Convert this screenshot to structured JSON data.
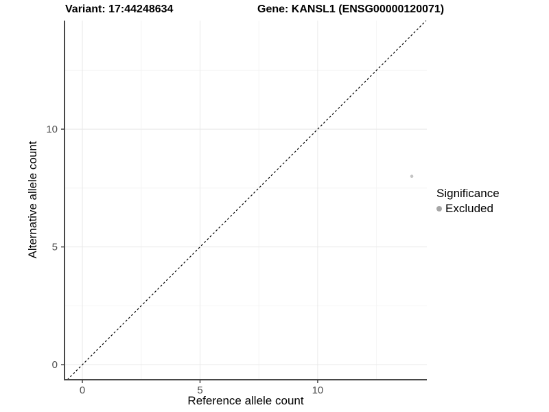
{
  "chart_data": {
    "type": "scatter",
    "title_left": "Variant: 17:44248634",
    "title_right": "Gene: KANSL1 (ENSG00000120071)",
    "xlabel": "Reference allele count",
    "ylabel": "Alternative allele count",
    "xlim": [
      -0.76,
      14.64
    ],
    "ylim": [
      -0.64,
      14.61
    ],
    "x_ticks": [
      0,
      5,
      10
    ],
    "y_ticks": [
      0,
      5,
      10
    ],
    "x_minor_ticks": [
      2.5,
      7.5,
      12.5
    ],
    "y_minor_ticks": [
      2.5,
      7.5,
      12.5
    ],
    "grid": true,
    "reference_line": {
      "type": "identity",
      "style": "dashed",
      "color": "#000000"
    },
    "series": [
      {
        "name": "Excluded",
        "color": "#c4c4c4",
        "points": [
          {
            "x": 14,
            "y": 8
          }
        ]
      }
    ],
    "legend": {
      "title": "Significance",
      "position": "right",
      "entries": [
        {
          "label": "Excluded",
          "color": "#a6a6a6"
        }
      ]
    }
  },
  "colors": {
    "background": "#ffffff",
    "axis_line": "#474747",
    "tick_mark": "#474747",
    "tick_label": "#4d4d4d",
    "grid_major": "#e8e8e8",
    "grid_minor": "#f4f4f4",
    "title_text": "#000000"
  }
}
